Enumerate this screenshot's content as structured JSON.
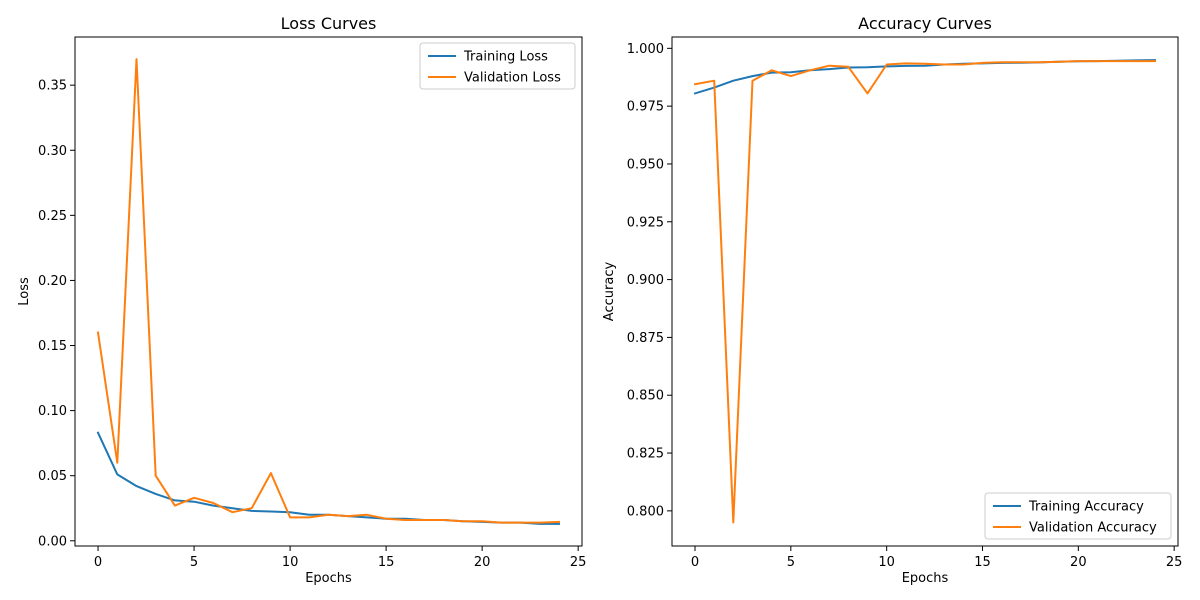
{
  "chart_data": [
    {
      "type": "line",
      "title": "Loss Curves",
      "xlabel": "Epochs",
      "ylabel": "Loss",
      "xlim": [
        -1.2,
        25.2
      ],
      "ylim": [
        -0.004,
        0.387
      ],
      "xticks": [
        0,
        5,
        10,
        15,
        20,
        25
      ],
      "yticks": [
        0.0,
        0.05,
        0.1,
        0.15,
        0.2,
        0.25,
        0.3,
        0.35
      ],
      "ytick_decimals": 2,
      "legend_loc": "upper right",
      "x": [
        0,
        1,
        2,
        3,
        4,
        5,
        6,
        7,
        8,
        9,
        10,
        11,
        12,
        13,
        14,
        15,
        16,
        17,
        18,
        19,
        20,
        21,
        22,
        23,
        24
      ],
      "series": [
        {
          "name": "Training Loss",
          "color": "#1f77b4",
          "values": [
            0.083,
            0.051,
            0.042,
            0.036,
            0.031,
            0.03,
            0.027,
            0.025,
            0.023,
            0.0225,
            0.022,
            0.02,
            0.02,
            0.019,
            0.018,
            0.017,
            0.017,
            0.016,
            0.016,
            0.015,
            0.0145,
            0.014,
            0.014,
            0.013,
            0.013
          ]
        },
        {
          "name": "Validation Loss",
          "color": "#ff7f0e",
          "values": [
            0.16,
            0.06,
            0.37,
            0.05,
            0.027,
            0.033,
            0.029,
            0.022,
            0.025,
            0.052,
            0.018,
            0.018,
            0.02,
            0.019,
            0.02,
            0.017,
            0.016,
            0.016,
            0.016,
            0.015,
            0.015,
            0.014,
            0.014,
            0.014,
            0.0145
          ]
        }
      ]
    },
    {
      "type": "line",
      "title": "Accuracy Curves",
      "xlabel": "Epochs",
      "ylabel": "Accuracy",
      "xlim": [
        -1.2,
        25.2
      ],
      "ylim": [
        0.7848,
        1.0049
      ],
      "xticks": [
        0,
        5,
        10,
        15,
        20,
        25
      ],
      "yticks": [
        0.8,
        0.825,
        0.85,
        0.875,
        0.9,
        0.925,
        0.95,
        0.975,
        1.0
      ],
      "ytick_decimals": 3,
      "legend_loc": "lower right",
      "x": [
        0,
        1,
        2,
        3,
        4,
        5,
        6,
        7,
        8,
        9,
        10,
        11,
        12,
        13,
        14,
        15,
        16,
        17,
        18,
        19,
        20,
        21,
        22,
        23,
        24
      ],
      "series": [
        {
          "name": "Training Accuracy",
          "color": "#1f77b4",
          "values": [
            0.9805,
            0.983,
            0.986,
            0.988,
            0.9895,
            0.9897,
            0.9905,
            0.991,
            0.9917,
            0.9918,
            0.9922,
            0.9924,
            0.9925,
            0.993,
            0.9933,
            0.9935,
            0.9937,
            0.9938,
            0.9939,
            0.9942,
            0.9944,
            0.9945,
            0.9946,
            0.9948,
            0.9949
          ]
        },
        {
          "name": "Validation Accuracy",
          "color": "#ff7f0e",
          "values": [
            0.9845,
            0.986,
            0.795,
            0.986,
            0.9905,
            0.988,
            0.9905,
            0.9925,
            0.992,
            0.9805,
            0.993,
            0.9935,
            0.9933,
            0.993,
            0.993,
            0.9937,
            0.994,
            0.994,
            0.994,
            0.9942,
            0.9945,
            0.9945,
            0.9945,
            0.9945,
            0.9945
          ]
        }
      ]
    }
  ]
}
